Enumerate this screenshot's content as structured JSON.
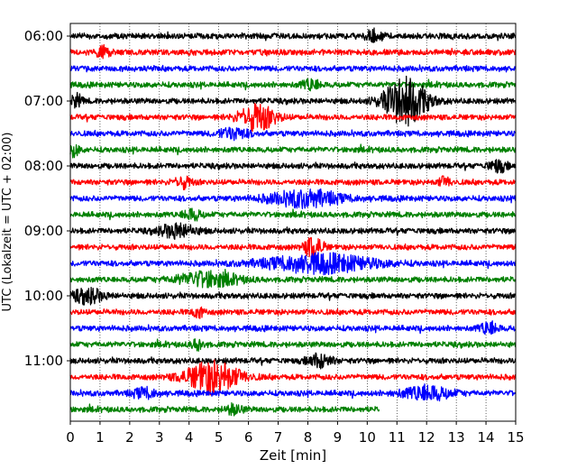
{
  "chart_data": {
    "type": "line",
    "title": "",
    "xlabel": "Zeit  [min]",
    "ylabel": "UTC (Lokalzeit = UTC + 02:00)",
    "xlim": [
      0,
      15
    ],
    "x_ticks": [
      "0",
      "1",
      "2",
      "3",
      "4",
      "5",
      "6",
      "7",
      "8",
      "9",
      "10",
      "11",
      "12",
      "13",
      "14",
      "15"
    ],
    "y_ticks": [
      "06:00",
      "07:00",
      "08:00",
      "09:00",
      "10:00",
      "11:00"
    ],
    "grid": "vertical dotted",
    "start_time": "06:00",
    "trace_interval_min": 15,
    "colors": [
      "#000000",
      "#ff0000",
      "#0000ff",
      "#008000"
    ],
    "traces": [
      {
        "start": "06:00",
        "color": "#000000",
        "end_min": 15,
        "events": [
          {
            "t": 10.2,
            "amp": 1.5,
            "dur": 0.3
          }
        ]
      },
      {
        "start": "06:15",
        "color": "#ff0000",
        "end_min": 15,
        "events": [
          {
            "t": 1.1,
            "amp": 1.6,
            "dur": 0.2
          }
        ]
      },
      {
        "start": "06:30",
        "color": "#0000ff",
        "end_min": 15,
        "events": []
      },
      {
        "start": "06:45",
        "color": "#008000",
        "end_min": 15,
        "events": [
          {
            "t": 8.1,
            "amp": 1.4,
            "dur": 0.3
          }
        ]
      },
      {
        "start": "07:00",
        "color": "#000000",
        "end_min": 15,
        "events": [
          {
            "t": 0.2,
            "amp": 1.6,
            "dur": 0.2
          },
          {
            "t": 11.3,
            "amp": 6.5,
            "dur": 0.7
          }
        ]
      },
      {
        "start": "07:15",
        "color": "#ff0000",
        "end_min": 15,
        "events": [
          {
            "t": 6.3,
            "amp": 3.5,
            "dur": 0.6
          }
        ]
      },
      {
        "start": "07:30",
        "color": "#0000ff",
        "end_min": 15,
        "events": [
          {
            "t": 5.5,
            "amp": 1.4,
            "dur": 0.5
          }
        ]
      },
      {
        "start": "07:45",
        "color": "#008000",
        "end_min": 15,
        "events": [
          {
            "t": 0.1,
            "amp": 1.6,
            "dur": 0.2
          }
        ]
      },
      {
        "start": "08:00",
        "color": "#000000",
        "end_min": 15,
        "events": [
          {
            "t": 14.4,
            "amp": 1.5,
            "dur": 0.3
          }
        ]
      },
      {
        "start": "08:15",
        "color": "#ff0000",
        "end_min": 15,
        "events": [
          {
            "t": 3.8,
            "amp": 1.4,
            "dur": 0.3
          },
          {
            "t": 12.6,
            "amp": 1.3,
            "dur": 0.2
          }
        ]
      },
      {
        "start": "08:30",
        "color": "#0000ff",
        "end_min": 15,
        "events": [
          {
            "t": 7.9,
            "amp": 2.2,
            "dur": 1.2
          }
        ]
      },
      {
        "start": "08:45",
        "color": "#008000",
        "end_min": 15,
        "events": [
          {
            "t": 4.1,
            "amp": 1.4,
            "dur": 0.3
          }
        ]
      },
      {
        "start": "09:00",
        "color": "#000000",
        "end_min": 15,
        "events": [
          {
            "t": 3.6,
            "amp": 1.8,
            "dur": 0.6
          }
        ]
      },
      {
        "start": "09:15",
        "color": "#ff0000",
        "end_min": 15,
        "events": [
          {
            "t": 8.2,
            "amp": 3.0,
            "dur": 0.3
          }
        ]
      },
      {
        "start": "09:30",
        "color": "#0000ff",
        "end_min": 15,
        "events": [
          {
            "t": 8.4,
            "amp": 2.4,
            "dur": 1.8
          }
        ]
      },
      {
        "start": "09:45",
        "color": "#008000",
        "end_min": 15,
        "events": [
          {
            "t": 4.6,
            "amp": 2.0,
            "dur": 1.0
          }
        ]
      },
      {
        "start": "10:00",
        "color": "#000000",
        "end_min": 15,
        "events": [
          {
            "t": 0.6,
            "amp": 1.9,
            "dur": 0.5
          }
        ]
      },
      {
        "start": "10:15",
        "color": "#ff0000",
        "end_min": 15,
        "events": [
          {
            "t": 4.3,
            "amp": 1.3,
            "dur": 0.2
          }
        ]
      },
      {
        "start": "10:30",
        "color": "#0000ff",
        "end_min": 15,
        "events": [
          {
            "t": 14.1,
            "amp": 1.6,
            "dur": 0.3
          }
        ]
      },
      {
        "start": "10:45",
        "color": "#008000",
        "end_min": 15,
        "events": [
          {
            "t": 4.3,
            "amp": 1.4,
            "dur": 0.2
          }
        ]
      },
      {
        "start": "11:00",
        "color": "#000000",
        "end_min": 15,
        "events": [
          {
            "t": 8.4,
            "amp": 1.8,
            "dur": 0.4
          }
        ]
      },
      {
        "start": "11:15",
        "color": "#ff0000",
        "end_min": 15,
        "events": [
          {
            "t": 4.8,
            "amp": 4.2,
            "dur": 0.9
          }
        ]
      },
      {
        "start": "11:30",
        "color": "#0000ff",
        "end_min": 15,
        "events": [
          {
            "t": 12.0,
            "amp": 1.9,
            "dur": 0.8
          },
          {
            "t": 2.5,
            "amp": 1.3,
            "dur": 0.4
          }
        ]
      },
      {
        "start": "11:45",
        "color": "#008000",
        "end_min": 10.4,
        "events": [
          {
            "t": 5.5,
            "amp": 1.2,
            "dur": 0.3
          }
        ]
      }
    ]
  }
}
